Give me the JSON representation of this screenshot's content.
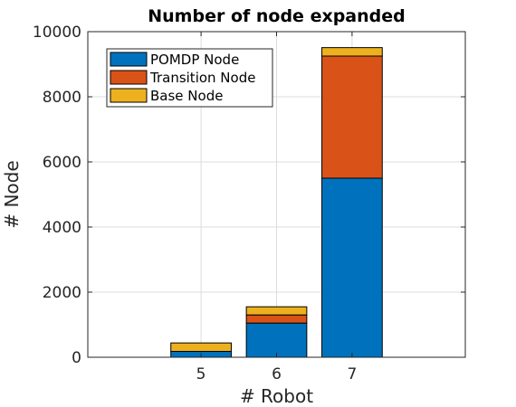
{
  "chart_data": {
    "type": "bar",
    "stacked": true,
    "title": "Number of node expanded",
    "xlabel": "# Robot",
    "ylabel": "# Node",
    "categories": [
      "5",
      "6",
      "7"
    ],
    "xlim": [
      3.5,
      8.5
    ],
    "ylim": [
      0,
      10000
    ],
    "yticks": [
      0,
      2000,
      4000,
      6000,
      8000,
      10000
    ],
    "grid": true,
    "legend_position": "top-left",
    "series": [
      {
        "name": "POMDP Node",
        "color": "#0072BD",
        "values": [
          180,
          1050,
          5500
        ]
      },
      {
        "name": "Transition Node",
        "color": "#D95319",
        "values": [
          0,
          250,
          3750
        ]
      },
      {
        "name": "Base Node",
        "color": "#EDB120",
        "values": [
          260,
          250,
          260
        ]
      }
    ]
  }
}
